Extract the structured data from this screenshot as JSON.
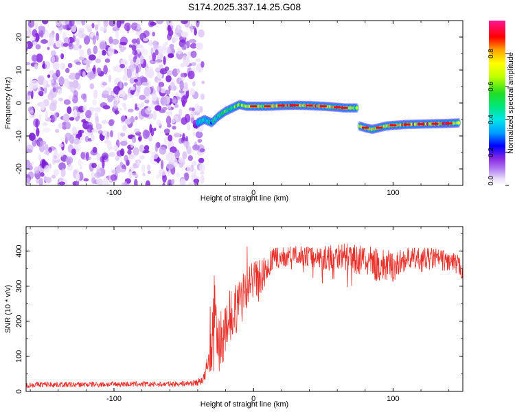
{
  "page": {
    "title": "S174.2025.337.14.25.G08"
  },
  "colors": {
    "line": "#e8302a",
    "noise": "#8a2be2",
    "colormap": [
      "#f0e8fa",
      "#c9a6f0",
      "#8a2be2",
      "#0000ff",
      "#00bfff",
      "#00e6a8",
      "#22dd22",
      "#bfff00",
      "#ffff00",
      "#ffa500",
      "#ff0000",
      "#ff1493"
    ]
  },
  "chart_data": [
    {
      "type": "heatmap",
      "title": "S174.2025.337.14.25.G08",
      "xlabel": "Height of straight line (km)",
      "ylabel": "Frequency (Hz)",
      "xlim": [
        -163,
        150
      ],
      "ylim": [
        -25,
        25
      ],
      "xticks": [
        -100,
        0,
        100
      ],
      "yticks": [
        20,
        10,
        0,
        -10,
        -20
      ],
      "colorbar": {
        "label": "Normalized spectral amplitude",
        "range": [
          0,
          1
        ],
        "ticks": [
          "0.0",
          "0.2",
          "0.4",
          "0.6",
          "0.8"
        ],
        "tick_values": [
          0,
          0.2,
          0.4,
          0.6,
          0.8
        ]
      },
      "noise_region": {
        "x_range": [
          -163,
          -40
        ],
        "freq_range": [
          -25,
          25
        ]
      },
      "signal_track": [
        {
          "x": -40,
          "freq": -6,
          "amp": 0.25
        },
        {
          "x": -35,
          "freq": -5,
          "amp": 0.3
        },
        {
          "x": -30,
          "freq": -6,
          "amp": 0.3
        },
        {
          "x": -25,
          "freq": -4,
          "amp": 0.35
        },
        {
          "x": -20,
          "freq": -2.5,
          "amp": 0.4
        },
        {
          "x": -15,
          "freq": -1.5,
          "amp": 0.45
        },
        {
          "x": -10,
          "freq": -0.5,
          "amp": 0.5
        },
        {
          "x": -5,
          "freq": -1,
          "amp": 0.55
        },
        {
          "x": 0,
          "freq": -1,
          "amp": 0.65
        },
        {
          "x": 5,
          "freq": -1,
          "amp": 0.6
        },
        {
          "x": 10,
          "freq": -1,
          "amp": 0.65
        },
        {
          "x": 20,
          "freq": -0.8,
          "amp": 0.8
        },
        {
          "x": 30,
          "freq": -0.7,
          "amp": 0.75
        },
        {
          "x": 40,
          "freq": -0.8,
          "amp": 0.7
        },
        {
          "x": 50,
          "freq": -1,
          "amp": 0.7
        },
        {
          "x": 60,
          "freq": -1.3,
          "amp": 0.75
        },
        {
          "x": 65,
          "freq": -1.5,
          "amp": 0.75
        },
        {
          "x": 70,
          "freq": -1.5,
          "amp": 0.6
        },
        {
          "x": 75,
          "freq": -1.5,
          "amp": 0.5
        },
        {
          "x": 76,
          "freq": -7,
          "amp": 0.55
        },
        {
          "x": 80,
          "freq": -7.5,
          "amp": 0.7
        },
        {
          "x": 85,
          "freq": -8,
          "amp": 0.6
        },
        {
          "x": 90,
          "freq": -7.5,
          "amp": 0.7
        },
        {
          "x": 95,
          "freq": -7,
          "amp": 0.6
        },
        {
          "x": 100,
          "freq": -6.8,
          "amp": 0.65
        },
        {
          "x": 110,
          "freq": -6.5,
          "amp": 0.8
        },
        {
          "x": 120,
          "freq": -6.4,
          "amp": 0.7
        },
        {
          "x": 130,
          "freq": -6.3,
          "amp": 0.75
        },
        {
          "x": 140,
          "freq": -6.2,
          "amp": 0.8
        },
        {
          "x": 148,
          "freq": -6,
          "amp": 0.5
        }
      ]
    },
    {
      "type": "line",
      "title": "",
      "xlabel": "Height of straight line (km)",
      "ylabel": "SNR (10 * v/v)",
      "xlim": [
        -163,
        150
      ],
      "ylim": [
        0,
        470
      ],
      "xticks": [
        -100,
        0,
        100
      ],
      "yticks": [
        0,
        100,
        200,
        300,
        400
      ],
      "series": [
        {
          "name": "SNR",
          "x": [
            -163,
            -150,
            -130,
            -110,
            -90,
            -70,
            -50,
            -40,
            -35,
            -30,
            -28,
            -25,
            -20,
            -15,
            -10,
            -5,
            0,
            5,
            10,
            15,
            20,
            30,
            40,
            50,
            60,
            70,
            80,
            90,
            100,
            110,
            120,
            130,
            140,
            150
          ],
          "y": [
            18,
            20,
            19,
            20,
            21,
            20,
            22,
            25,
            40,
            120,
            260,
            140,
            180,
            230,
            250,
            290,
            330,
            320,
            360,
            380,
            380,
            390,
            385,
            380,
            390,
            380,
            370,
            360,
            355,
            380,
            375,
            380,
            370,
            350
          ],
          "noise_amplitude": [
            8,
            8,
            8,
            8,
            8,
            8,
            8,
            10,
            20,
            60,
            90,
            90,
            80,
            80,
            70,
            60,
            50,
            60,
            40,
            30,
            30,
            25,
            30,
            35,
            40,
            40,
            45,
            50,
            45,
            30,
            35,
            30,
            30,
            35
          ]
        }
      ]
    }
  ]
}
